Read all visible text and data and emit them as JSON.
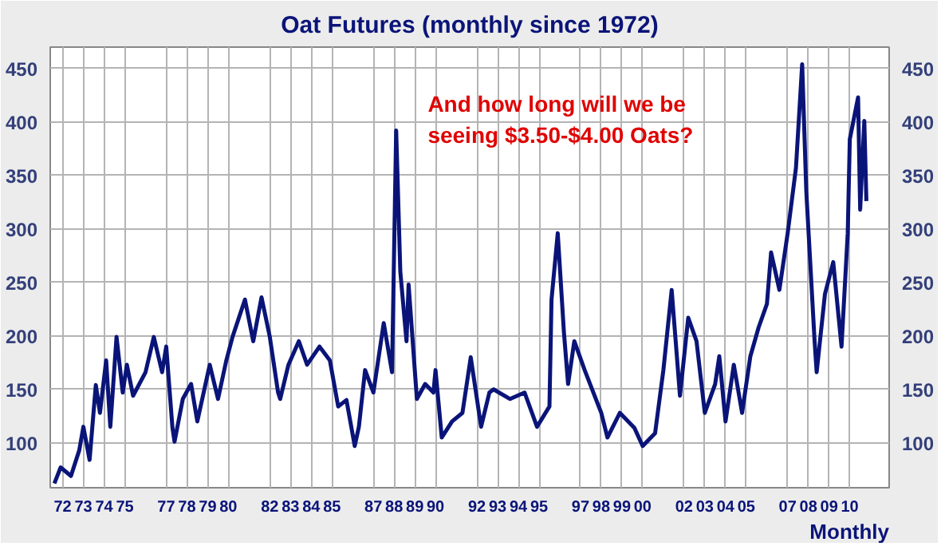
{
  "chart_data": {
    "type": "line",
    "title": "Oat Futures (monthly since 1972)",
    "xlabel": "Monthly",
    "annotations": [
      "And how long will we be\nseeing $3.50-$4.00 Oats?"
    ],
    "x": [
      1971.6,
      1971.9,
      1972.4,
      1972.8,
      1973.0,
      1973.3,
      1973.6,
      1973.8,
      1974.1,
      1974.3,
      1974.6,
      1974.9,
      1975.1,
      1975.4,
      1976.0,
      1976.4,
      1976.8,
      1977.0,
      1977.3,
      1977.4,
      1977.8,
      1978.2,
      1978.5,
      1979.1,
      1979.5,
      1979.9,
      1980.2,
      1980.8,
      1981.2,
      1981.6,
      1982.0,
      1982.4,
      1982.5,
      1982.9,
      1983.4,
      1983.8,
      1984.4,
      1984.9,
      1985.3,
      1985.7,
      1986.1,
      1986.3,
      1986.6,
      1987.0,
      1987.5,
      1987.9,
      1988.1,
      1988.3,
      1988.6,
      1988.7,
      1989.1,
      1989.5,
      1989.9,
      1990.0,
      1990.3,
      1990.8,
      1991.3,
      1991.7,
      1992.2,
      1992.6,
      1992.8,
      1993.6,
      1994.3,
      1994.9,
      1995.5,
      1995.6,
      1995.9,
      1996.2,
      1996.4,
      1996.7,
      1997.2,
      1998.0,
      1998.3,
      1998.9,
      1999.6,
      2000.0,
      2000.6,
      2001.0,
      2001.4,
      2001.8,
      2002.2,
      2002.6,
      2003.0,
      2003.5,
      2003.7,
      2004.0,
      2004.4,
      2004.8,
      2005.2,
      2005.6,
      2006.0,
      2006.2,
      2006.6,
      2007.0,
      2007.4,
      2007.7,
      2007.9,
      2008.3,
      2008.4,
      2008.8,
      2009.2,
      2009.6,
      2009.9,
      2010.0,
      2010.4,
      2010.5,
      2010.7,
      2010.8
    ],
    "series": [
      {
        "color": "#0a1478",
        "values": [
          62,
          77,
          69,
          93,
          115,
          84,
          154,
          128,
          177,
          115,
          199,
          147,
          173,
          144,
          166,
          199,
          166,
          190,
          114,
          101,
          141,
          155,
          120,
          173,
          141,
          177,
          199,
          234,
          195,
          236,
          199,
          147,
          141,
          173,
          195,
          173,
          190,
          177,
          134,
          140,
          97,
          115,
          168,
          147,
          212,
          166,
          392,
          260,
          195,
          248,
          141,
          155,
          147,
          168,
          105,
          120,
          128,
          180,
          115,
          147,
          150,
          141,
          147,
          115,
          134,
          234,
          296,
          203,
          155,
          195,
          168,
          128,
          105,
          128,
          114,
          97,
          109,
          168,
          243,
          144,
          217,
          195,
          128,
          155,
          181,
          120,
          173,
          128,
          181,
          208,
          230,
          278,
          243,
          296,
          357,
          454,
          335,
          195,
          166,
          239,
          269,
          190,
          296,
          384,
          423,
          318,
          401,
          326
        ]
      }
    ],
    "xlim": [
      1971.4,
      2011.9
    ],
    "xticks": [
      {
        "value": 1972,
        "label": "72"
      },
      {
        "value": 1973,
        "label": "73"
      },
      {
        "value": 1974,
        "label": "74"
      },
      {
        "value": 1975,
        "label": "75"
      },
      {
        "value": 1977,
        "label": "77"
      },
      {
        "value": 1978,
        "label": "78"
      },
      {
        "value": 1979,
        "label": "79"
      },
      {
        "value": 1980,
        "label": "80"
      },
      {
        "value": 1982,
        "label": "82"
      },
      {
        "value": 1983,
        "label": "83"
      },
      {
        "value": 1984,
        "label": "84"
      },
      {
        "value": 1985,
        "label": "85"
      },
      {
        "value": 1987,
        "label": "87"
      },
      {
        "value": 1988,
        "label": "88"
      },
      {
        "value": 1989,
        "label": "89"
      },
      {
        "value": 1990,
        "label": "90"
      },
      {
        "value": 1992,
        "label": "92"
      },
      {
        "value": 1993,
        "label": "93"
      },
      {
        "value": 1994,
        "label": "94"
      },
      {
        "value": 1995,
        "label": "95"
      },
      {
        "value": 1997,
        "label": "97"
      },
      {
        "value": 1998,
        "label": "98"
      },
      {
        "value": 1999,
        "label": "99"
      },
      {
        "value": 2000,
        "label": "00"
      },
      {
        "value": 2002,
        "label": "02"
      },
      {
        "value": 2003,
        "label": "03"
      },
      {
        "value": 2004,
        "label": "04"
      },
      {
        "value": 2005,
        "label": "05"
      },
      {
        "value": 2007,
        "label": "07"
      },
      {
        "value": 2008,
        "label": "08"
      },
      {
        "value": 2009,
        "label": "09"
      },
      {
        "value": 2010,
        "label": "10"
      }
    ],
    "ylim": [
      58,
      470
    ],
    "yticks": [
      100,
      150,
      200,
      250,
      300,
      350,
      400,
      450
    ],
    "y2lim": [
      58,
      470
    ],
    "y2ticks": [
      100,
      150,
      200,
      250,
      300,
      350,
      400,
      450
    ],
    "grid": true,
    "marker": "none",
    "line_style": "solid"
  }
}
